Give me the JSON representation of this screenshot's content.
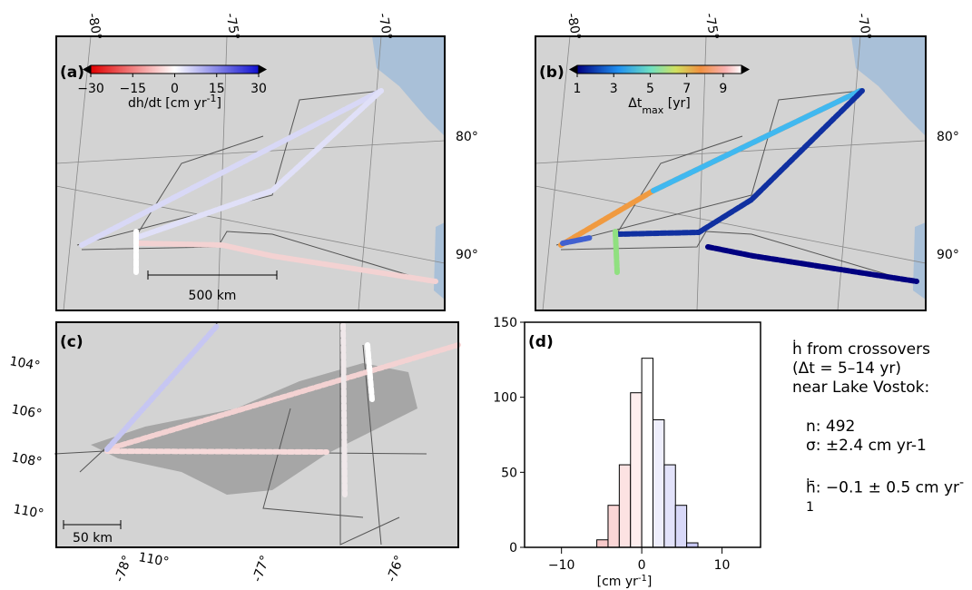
{
  "panel_a": {
    "label": "(a)",
    "colorbar": {
      "clim": [
        -30,
        30
      ],
      "ticks": [
        {
          "value": -30,
          "label": "−30"
        },
        {
          "value": -15,
          "label": "−15"
        },
        0,
        15,
        30
      ],
      "label_main": "dh/dt [cm yr",
      "label_sup": "-1",
      "label_end": "]"
    },
    "lon_labels": [
      "-80°",
      "-75°",
      "-70°"
    ],
    "lat_labels": [
      "80°",
      "90°"
    ],
    "scale_bar": "500 km"
  },
  "panel_b": {
    "label": "(b)",
    "colorbar": {
      "clim": [
        1,
        10
      ],
      "ticks": [
        1,
        3,
        5,
        7,
        9
      ],
      "label_main": "Δt",
      "label_sub": "max",
      "label_end": " [yr]"
    },
    "lon_labels": [
      "-80°",
      "-75°",
      "-70°"
    ],
    "lat_labels": [
      "80°",
      "90°"
    ]
  },
  "panel_c": {
    "label": "(c)",
    "lat_labels": [
      "104°",
      "106°",
      "108°",
      "110°",
      "110°"
    ],
    "lon_labels": [
      "-78°",
      "-77°",
      "-76°"
    ],
    "scale_bar": "50 km"
  },
  "chart_data": {
    "type": "histogram",
    "label": "(d)",
    "xlabel_main": "[cm yr",
    "xlabel_sup": "-1",
    "xlabel_end": "]",
    "bins": [
      -5.6,
      -4.2,
      -2.8,
      -1.4,
      0,
      1.4,
      2.8,
      4.2,
      5.6,
      7.0
    ],
    "counts": [
      5,
      28,
      55,
      103,
      126,
      85,
      55,
      28,
      3
    ],
    "colors": [
      "#f8c9c9",
      "#fbd6d6",
      "#fce2e2",
      "#feeeee",
      "#ffffff",
      "#eeeefc",
      "#e2e2fa",
      "#d8d8f8",
      "#c8c8f4"
    ],
    "xlim": [
      -14.6,
      14.8
    ],
    "ylim": [
      0,
      150
    ],
    "xticks": [
      {
        "value": -10,
        "label": "−10"
      },
      0,
      10
    ],
    "yticks": [
      0,
      50,
      100,
      150
    ]
  },
  "stats": {
    "line1": "ḣ from crossovers",
    "line2": "(Δt = 5–14 yr)",
    "line3": "near Lake Vostok:",
    "n": "n: 492",
    "sigma": "σ: ±2.4 cm yr-1",
    "mean_main": "ḣ̄: −0.1 ± 0.5 cm yr",
    "mean_sup": "-1"
  }
}
